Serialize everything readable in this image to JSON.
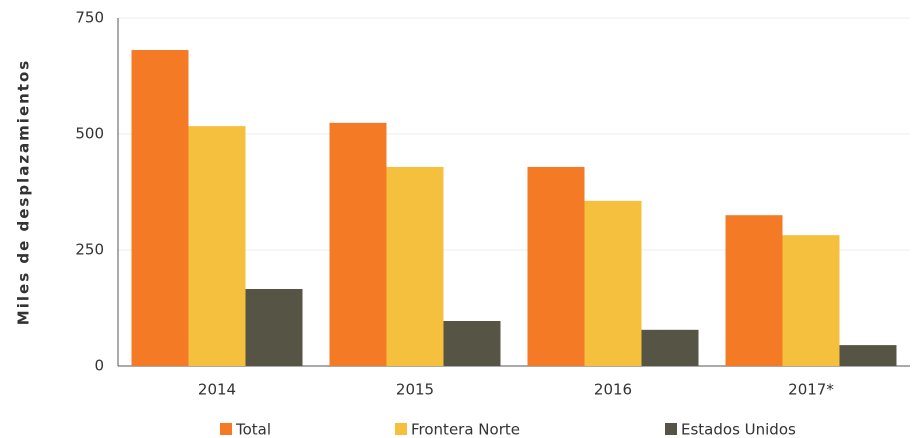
{
  "chart_data": {
    "type": "bar",
    "ylabel": "Miles de desplazamientos",
    "categories": [
      "2014",
      "2015",
      "2016",
      "2017*"
    ],
    "series": [
      {
        "name": "Total",
        "color": "#f47a26",
        "values": [
          681,
          524,
          429,
          325
        ]
      },
      {
        "name": "Frontera Norte",
        "color": "#f5c03d",
        "values": [
          517,
          429,
          356,
          282
        ]
      },
      {
        "name": "Estados Unidos",
        "color": "#565444",
        "values": [
          166,
          97,
          78,
          45
        ]
      }
    ],
    "ylim": [
      0,
      750
    ],
    "yticks": [
      0,
      250,
      500,
      750
    ],
    "grid": true
  }
}
